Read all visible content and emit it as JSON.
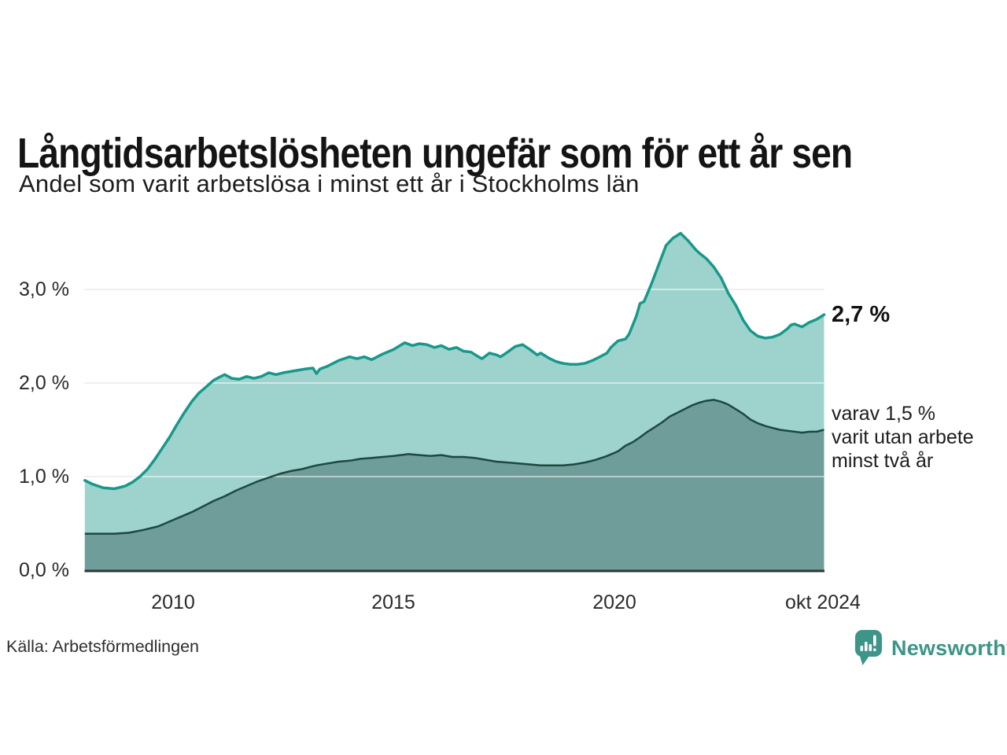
{
  "header": {
    "title": "Långtidsarbetslösheten ungefär som för ett år sen",
    "subtitle": "Andel som varit arbetslösa i minst ett år i Stockholms län"
  },
  "axes": {
    "y_ticks": [
      "3,0 %",
      "2,0 %",
      "1,0 %",
      "0,0 %"
    ],
    "x_ticks": [
      "2010",
      "2015",
      "2020",
      "okt 2024"
    ]
  },
  "annotations": {
    "latest_value": "2,7 %",
    "secondary_lines": [
      "varav 1,5 %",
      "varit utan arbete",
      "minst två år"
    ]
  },
  "footer": {
    "source": "Källa: Arbetsförmedlingen",
    "brand": "Newsworthy",
    "brand_icon": "newsworthy-speech-bubble-barchart-icon"
  },
  "colors": {
    "line_total": "#17988b",
    "fill_total": "#9ed3cd",
    "line_two_years": "#1e4842",
    "fill_two_years": "#6f9d99",
    "gridline": "#dedede",
    "gridline_over": "rgba(255,255,255,0.5)",
    "axis_line": "#303634",
    "brand": "#3d9488",
    "title_text": "#141414"
  },
  "chart_data": {
    "type": "area",
    "title": "Långtidsarbetslösheten ungefär som för ett år sen",
    "subtitle": "Andel som varit arbetslösa i minst ett år i Stockholms län",
    "unit": "%",
    "x_range": [
      2008.0,
      2024.75
    ],
    "ylim": [
      0,
      3.7
    ],
    "gridlines_pct": [
      1,
      2,
      3
    ],
    "x_tick_years": [
      2010,
      2015,
      2020,
      2024.75
    ],
    "legend_position": "right-annotations",
    "series": [
      {
        "name": "Andel arbetslösa minst ett år",
        "end_label": "2,7 %",
        "end_value": 2.7,
        "points": [
          [
            2008.0,
            0.96
          ],
          [
            2008.17,
            0.92
          ],
          [
            2008.42,
            0.88
          ],
          [
            2008.67,
            0.87
          ],
          [
            2008.92,
            0.9
          ],
          [
            2009.08,
            0.94
          ],
          [
            2009.25,
            1.0
          ],
          [
            2009.42,
            1.08
          ],
          [
            2009.58,
            1.18
          ],
          [
            2009.75,
            1.3
          ],
          [
            2009.92,
            1.42
          ],
          [
            2010.08,
            1.55
          ],
          [
            2010.25,
            1.68
          ],
          [
            2010.42,
            1.8
          ],
          [
            2010.58,
            1.89
          ],
          [
            2010.75,
            1.96
          ],
          [
            2010.92,
            2.03
          ],
          [
            2011.08,
            2.07
          ],
          [
            2011.17,
            2.09
          ],
          [
            2011.33,
            2.05
          ],
          [
            2011.5,
            2.04
          ],
          [
            2011.67,
            2.07
          ],
          [
            2011.83,
            2.05
          ],
          [
            2012.0,
            2.07
          ],
          [
            2012.17,
            2.11
          ],
          [
            2012.33,
            2.09
          ],
          [
            2012.5,
            2.11
          ],
          [
            2012.75,
            2.13
          ],
          [
            2013.0,
            2.15
          ],
          [
            2013.17,
            2.16
          ],
          [
            2013.25,
            2.1
          ],
          [
            2013.33,
            2.15
          ],
          [
            2013.5,
            2.18
          ],
          [
            2013.75,
            2.24
          ],
          [
            2014.0,
            2.28
          ],
          [
            2014.17,
            2.26
          ],
          [
            2014.33,
            2.28
          ],
          [
            2014.5,
            2.25
          ],
          [
            2014.75,
            2.31
          ],
          [
            2015.0,
            2.36
          ],
          [
            2015.25,
            2.43
          ],
          [
            2015.42,
            2.4
          ],
          [
            2015.58,
            2.42
          ],
          [
            2015.75,
            2.41
          ],
          [
            2015.92,
            2.38
          ],
          [
            2016.08,
            2.4
          ],
          [
            2016.25,
            2.36
          ],
          [
            2016.42,
            2.38
          ],
          [
            2016.58,
            2.34
          ],
          [
            2016.75,
            2.33
          ],
          [
            2016.92,
            2.28
          ],
          [
            2017.0,
            2.26
          ],
          [
            2017.17,
            2.32
          ],
          [
            2017.33,
            2.3
          ],
          [
            2017.42,
            2.28
          ],
          [
            2017.58,
            2.33
          ],
          [
            2017.75,
            2.39
          ],
          [
            2017.92,
            2.41
          ],
          [
            2018.08,
            2.36
          ],
          [
            2018.25,
            2.3
          ],
          [
            2018.33,
            2.32
          ],
          [
            2018.5,
            2.27
          ],
          [
            2018.67,
            2.23
          ],
          [
            2018.83,
            2.21
          ],
          [
            2019.0,
            2.2
          ],
          [
            2019.17,
            2.2
          ],
          [
            2019.33,
            2.21
          ],
          [
            2019.5,
            2.24
          ],
          [
            2019.67,
            2.28
          ],
          [
            2019.83,
            2.32
          ],
          [
            2019.92,
            2.38
          ],
          [
            2020.08,
            2.45
          ],
          [
            2020.25,
            2.47
          ],
          [
            2020.33,
            2.52
          ],
          [
            2020.5,
            2.72
          ],
          [
            2020.58,
            2.85
          ],
          [
            2020.67,
            2.87
          ],
          [
            2020.83,
            3.05
          ],
          [
            2021.0,
            3.26
          ],
          [
            2021.17,
            3.47
          ],
          [
            2021.33,
            3.55
          ],
          [
            2021.5,
            3.6
          ],
          [
            2021.67,
            3.52
          ],
          [
            2021.83,
            3.43
          ],
          [
            2021.92,
            3.39
          ],
          [
            2022.08,
            3.33
          ],
          [
            2022.25,
            3.24
          ],
          [
            2022.42,
            3.12
          ],
          [
            2022.58,
            2.96
          ],
          [
            2022.75,
            2.83
          ],
          [
            2022.92,
            2.67
          ],
          [
            2023.08,
            2.56
          ],
          [
            2023.25,
            2.5
          ],
          [
            2023.42,
            2.48
          ],
          [
            2023.58,
            2.49
          ],
          [
            2023.75,
            2.52
          ],
          [
            2023.92,
            2.58
          ],
          [
            2024.0,
            2.62
          ],
          [
            2024.08,
            2.63
          ],
          [
            2024.25,
            2.6
          ],
          [
            2024.42,
            2.65
          ],
          [
            2024.58,
            2.68
          ],
          [
            2024.75,
            2.73
          ]
        ]
      },
      {
        "name": "varav utan arbete minst två år",
        "end_label": "varav 1,5 % varit utan arbete minst två år",
        "end_value": 1.5,
        "points": [
          [
            2008.0,
            0.39
          ],
          [
            2008.33,
            0.39
          ],
          [
            2008.67,
            0.39
          ],
          [
            2009.0,
            0.4
          ],
          [
            2009.33,
            0.43
          ],
          [
            2009.67,
            0.47
          ],
          [
            2009.92,
            0.52
          ],
          [
            2010.17,
            0.57
          ],
          [
            2010.42,
            0.62
          ],
          [
            2010.67,
            0.68
          ],
          [
            2010.92,
            0.74
          ],
          [
            2011.17,
            0.79
          ],
          [
            2011.42,
            0.85
          ],
          [
            2011.67,
            0.9
          ],
          [
            2011.92,
            0.95
          ],
          [
            2012.17,
            0.99
          ],
          [
            2012.42,
            1.03
          ],
          [
            2012.67,
            1.06
          ],
          [
            2012.92,
            1.08
          ],
          [
            2013.08,
            1.1
          ],
          [
            2013.25,
            1.12
          ],
          [
            2013.5,
            1.14
          ],
          [
            2013.75,
            1.16
          ],
          [
            2014.0,
            1.17
          ],
          [
            2014.25,
            1.19
          ],
          [
            2014.5,
            1.2
          ],
          [
            2014.75,
            1.21
          ],
          [
            2015.0,
            1.22
          ],
          [
            2015.33,
            1.24
          ],
          [
            2015.58,
            1.23
          ],
          [
            2015.83,
            1.22
          ],
          [
            2016.08,
            1.23
          ],
          [
            2016.33,
            1.21
          ],
          [
            2016.58,
            1.21
          ],
          [
            2016.83,
            1.2
          ],
          [
            2017.08,
            1.18
          ],
          [
            2017.33,
            1.16
          ],
          [
            2017.58,
            1.15
          ],
          [
            2017.83,
            1.14
          ],
          [
            2018.08,
            1.13
          ],
          [
            2018.33,
            1.12
          ],
          [
            2018.58,
            1.12
          ],
          [
            2018.83,
            1.12
          ],
          [
            2019.08,
            1.13
          ],
          [
            2019.33,
            1.15
          ],
          [
            2019.58,
            1.18
          ],
          [
            2019.83,
            1.22
          ],
          [
            2020.08,
            1.27
          ],
          [
            2020.25,
            1.33
          ],
          [
            2020.42,
            1.37
          ],
          [
            2020.58,
            1.42
          ],
          [
            2020.75,
            1.48
          ],
          [
            2020.92,
            1.53
          ],
          [
            2021.08,
            1.58
          ],
          [
            2021.25,
            1.64
          ],
          [
            2021.5,
            1.7
          ],
          [
            2021.75,
            1.76
          ],
          [
            2021.92,
            1.79
          ],
          [
            2022.08,
            1.81
          ],
          [
            2022.25,
            1.82
          ],
          [
            2022.42,
            1.8
          ],
          [
            2022.58,
            1.77
          ],
          [
            2022.75,
            1.72
          ],
          [
            2022.92,
            1.67
          ],
          [
            2023.08,
            1.61
          ],
          [
            2023.25,
            1.57
          ],
          [
            2023.42,
            1.54
          ],
          [
            2023.58,
            1.52
          ],
          [
            2023.75,
            1.5
          ],
          [
            2023.92,
            1.49
          ],
          [
            2024.08,
            1.48
          ],
          [
            2024.25,
            1.47
          ],
          [
            2024.42,
            1.48
          ],
          [
            2024.58,
            1.48
          ],
          [
            2024.75,
            1.5
          ]
        ]
      }
    ]
  }
}
